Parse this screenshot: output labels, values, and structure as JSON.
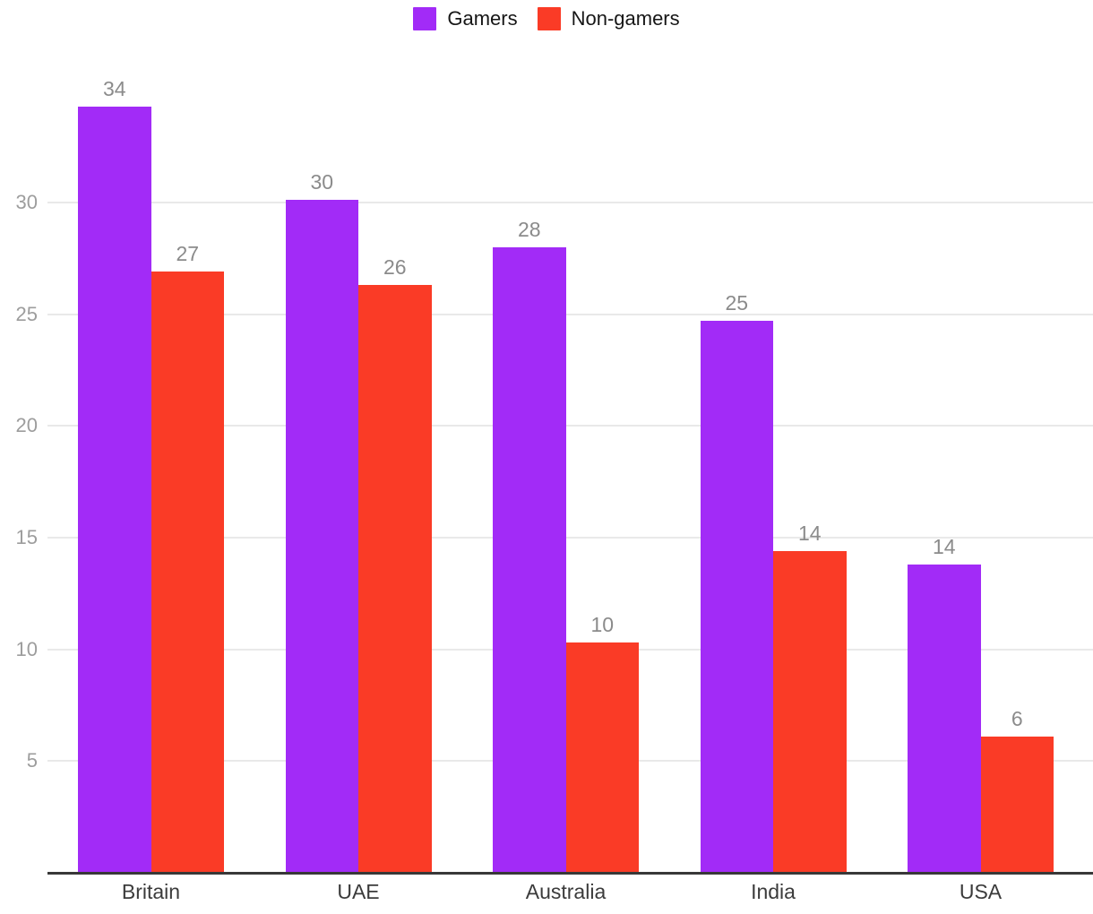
{
  "chart_data": {
    "type": "bar",
    "title": "",
    "xlabel": "",
    "ylabel": "",
    "categories": [
      "Britain",
      "UAE",
      "Australia",
      "India",
      "USA"
    ],
    "series": [
      {
        "name": "Gamers",
        "color": "#a22bf7",
        "values": [
          34.3,
          30.1,
          28.0,
          24.7,
          13.8
        ],
        "data_labels": [
          "34",
          "30",
          "28",
          "25",
          "14"
        ]
      },
      {
        "name": "Non-gamers",
        "color": "#fa3b26",
        "values": [
          26.9,
          26.3,
          10.3,
          14.4,
          6.1
        ],
        "data_labels": [
          "27",
          "26",
          "10",
          "14",
          "6"
        ]
      }
    ],
    "yticks": [
      5,
      10,
      15,
      20,
      25,
      30
    ],
    "ylim": [
      0,
      35.3
    ],
    "grid": true,
    "grid_color": "#e9e9e9",
    "baseline_color": "#383838",
    "tick_label_color": "#9d9d9d",
    "value_label_color": "#8b8b8b",
    "category_label_color": "#3b3b3b",
    "legend_position": "top-center",
    "background": "#ffffff"
  }
}
